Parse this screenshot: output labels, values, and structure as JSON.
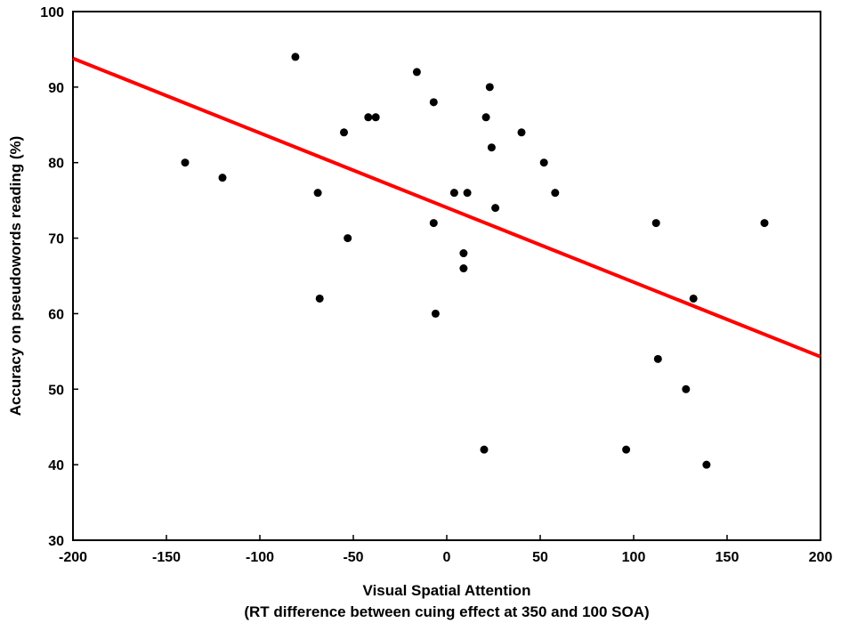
{
  "chart_data": {
    "type": "scatter",
    "title": "",
    "xlabel": "Visual Spatial Attention",
    "xlabel2": "(RT difference between cuing effect at 350 and 100 SOA)",
    "ylabel": "Accuracy on pseudowords reading (%)",
    "xlim": [
      -200,
      200
    ],
    "ylim": [
      30,
      100
    ],
    "xticks": [
      -200,
      -150,
      -100,
      -50,
      0,
      50,
      100,
      150,
      200
    ],
    "yticks": [
      30,
      40,
      50,
      60,
      70,
      80,
      90,
      100
    ],
    "grid": false,
    "points": [
      [
        -140,
        80
      ],
      [
        -120,
        78
      ],
      [
        -81,
        94
      ],
      [
        -69,
        76
      ],
      [
        -68,
        62
      ],
      [
        -55,
        84
      ],
      [
        -53,
        70
      ],
      [
        -42,
        86
      ],
      [
        -38,
        86
      ],
      [
        -16,
        92
      ],
      [
        -7,
        88
      ],
      [
        -7,
        72
      ],
      [
        -6,
        60
      ],
      [
        4,
        76
      ],
      [
        9,
        68
      ],
      [
        9,
        66
      ],
      [
        11,
        76
      ],
      [
        20,
        42
      ],
      [
        21,
        86
      ],
      [
        23,
        90
      ],
      [
        24,
        82
      ],
      [
        26,
        74
      ],
      [
        40,
        84
      ],
      [
        52,
        80
      ],
      [
        58,
        76
      ],
      [
        96,
        42
      ],
      [
        112,
        72
      ],
      [
        113,
        54
      ],
      [
        128,
        50
      ],
      [
        132,
        62
      ],
      [
        139,
        40
      ],
      [
        170,
        72
      ]
    ],
    "fit_line": {
      "x": [
        -200,
        200
      ],
      "y": [
        93.8,
        54.3
      ],
      "color": "#ff0000"
    },
    "point_color": "#000000"
  }
}
